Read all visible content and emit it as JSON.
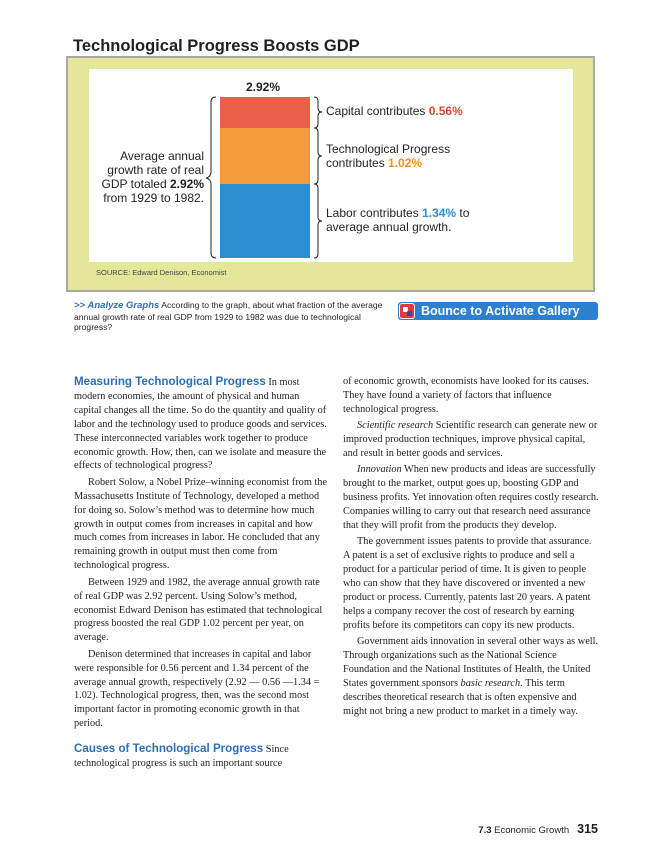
{
  "figure": {
    "title": "Technological Progress Boosts GDP",
    "total_label": "2.92%",
    "left_text": {
      "pre": "Average annual growth rate of real GDP totaled ",
      "value": "2.92%",
      "post": " from 1929 to 1982."
    },
    "segments": {
      "capital": {
        "pre": "Capital contributes ",
        "value": "0.56%",
        "post": ""
      },
      "tech": {
        "pre": "Technological Progress contributes ",
        "value": "1.02%",
        "post": ""
      },
      "labor": {
        "pre": "Labor contributes ",
        "value": "1.34%",
        "post": " to average annual growth."
      }
    },
    "source": "SOURCE: Edward Denison, Economist",
    "colors": {
      "capital": "#e95f47",
      "tech": "#f39a3a",
      "labor": "#2d8ecf",
      "frame": "#e4e79a"
    }
  },
  "analyze": {
    "marker": ">>",
    "label": "Analyze Graphs",
    "text": "According to the graph, about what fraction of the average annual growth rate of real GDP from 1929 to 1982 was due to technological progress?"
  },
  "gallery_button": {
    "label": "Bounce to Activate Gallery",
    "icon": "gallery-icon"
  },
  "left_column": {
    "h1": "Measuring Technological Progress",
    "p1": "In most modern economies, the amount of physical and human capital changes all the time. So do the quantity and quality of labor and the technology used to produce goods and services. These interconnected variables work together to produce economic growth. How, then, can we isolate and measure the effects of technological progress?",
    "p2": "Robert Solow, a Nobel Prize–winning economist from the Massachusetts Institute of Technology, developed a method for doing so. Solow’s method was to determine how much growth in output comes from increases in capital and how much comes from increases in labor. He concluded that any remaining growth in output must then come from technological progress.",
    "p3": "Between 1929 and 1982, the average annual growth rate of real GDP was 2.92 percent. Using Solow’s method, economist Edward Denison has estimated that technological progress boosted the real GDP 1.02 percent per year, on average.",
    "p4": "Denison determined that increases in capital and labor were responsible for 0.56 percent and 1.34 percent of the average annual growth, respectively (2.92 — 0.56 —1.34 = 1.02). Technological progress, then, was the second most important factor in promoting economic growth in that period.",
    "h2": "Causes of Technological Progress",
    "p5": "Since technological progress is such an important source"
  },
  "right_column": {
    "p1": "of economic growth, economists have looked for its causes. They have found a variety of factors that influence technological progress.",
    "p2_term": "Scientific research",
    "p2": " Scientific research can generate new or improved production techniques, improve physical capital, and result in better goods and services.",
    "p3_term": "Innovation",
    "p3": " When new products and ideas are successfully brought to the market, output goes up, boosting GDP and business profits. Yet innovation often requires costly research. Companies willing to carry out that research need assurance that they will profit from the products they develop.",
    "p4": "The government issues patents to provide that assurance. A patent is a set of exclusive rights to produce and sell a product for a particular period of time. It is given to people who can show that they have discovered or invented a new product or process. Currently, patents last 20 years. A patent helps a company recover the cost of research by earning profits before its competitors can copy its new products.",
    "p5_a": "Government aids innovation in several other ways as well. Through organizations such as the National Science Foundation and the National Institutes of Health, the United States government sponsors ",
    "p5_term": "basic research",
    "p5_b": ". This term describes theoretical research that is often expensive and might not bring a new product to market in a timely way."
  },
  "footer": {
    "section_num": "7.3",
    "section_name": "Economic Growth",
    "page": "315"
  }
}
